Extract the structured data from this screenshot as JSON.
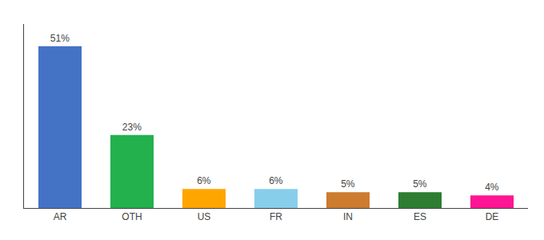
{
  "chart_data": {
    "type": "bar",
    "categories": [
      "AR",
      "OTH",
      "US",
      "FR",
      "IN",
      "ES",
      "DE"
    ],
    "values": [
      51,
      23,
      6,
      6,
      5,
      5,
      4
    ],
    "value_labels": [
      "51%",
      "23%",
      "6%",
      "6%",
      "5%",
      "5%",
      "4%"
    ],
    "colors": [
      "#4472C4",
      "#22B14C",
      "#FFA500",
      "#87CEEB",
      "#CD7B2E",
      "#2E7D32",
      "#FF1493"
    ],
    "ylim": [
      0,
      58
    ],
    "grid": false,
    "data_labels": true,
    "tick_labels": "x"
  }
}
